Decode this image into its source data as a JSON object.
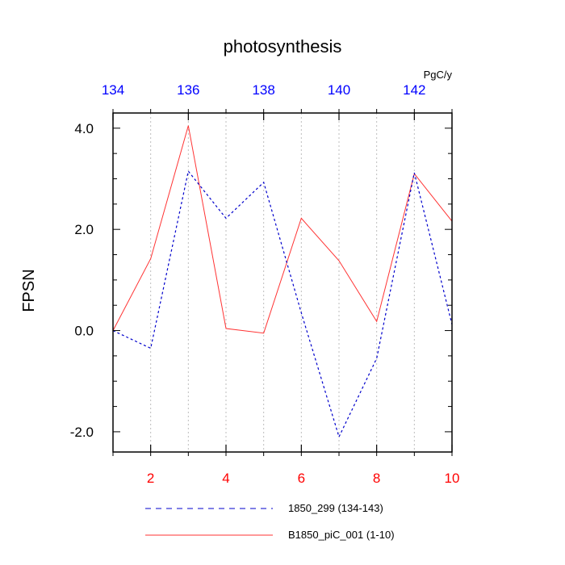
{
  "chart_data": {
    "type": "line",
    "title": "photosynthesis",
    "units": "PgC/y",
    "ylabel": "FPSN",
    "ylim": [
      -2.4,
      4.3
    ],
    "yticks": [
      -2.0,
      0.0,
      2.0,
      4.0
    ],
    "ytick_labels": [
      "-2.0",
      "0.0",
      "2.0",
      "4.0"
    ],
    "xlim_bottom": [
      1,
      10
    ],
    "xticks_bottom": [
      2,
      4,
      6,
      8,
      10
    ],
    "xlim_top": [
      134,
      143
    ],
    "xticks_top": [
      134,
      136,
      138,
      140,
      142
    ],
    "grid": "vertical-dotted",
    "colors": {
      "top_axis": "#0000ff",
      "bottom_axis": "#ff0000",
      "series_dashed": "#0000cc",
      "series_solid": "#ff3333"
    },
    "series": [
      {
        "name": "1850_299 (134-143)",
        "style": "dashed",
        "x": [
          134,
          135,
          136,
          137,
          138,
          139,
          140,
          141,
          142,
          143
        ],
        "values": [
          0.0,
          -0.35,
          3.15,
          2.22,
          2.93,
          0.35,
          -2.1,
          -0.55,
          3.12,
          0.12
        ]
      },
      {
        "name": "B1850_piC_001 (1-10)",
        "style": "solid",
        "x": [
          1,
          2,
          3,
          4,
          5,
          6,
          7,
          8,
          9,
          10
        ],
        "values": [
          0.0,
          1.42,
          4.05,
          0.04,
          -0.05,
          2.22,
          1.38,
          0.18,
          3.1,
          2.16
        ]
      }
    ]
  }
}
